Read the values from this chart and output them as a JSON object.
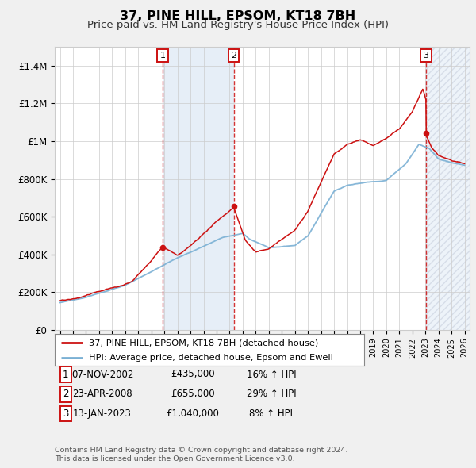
{
  "title": "37, PINE HILL, EPSOM, KT18 7BH",
  "subtitle": "Price paid vs. HM Land Registry's House Price Index (HPI)",
  "legend_line1": "37, PINE HILL, EPSOM, KT18 7BH (detached house)",
  "legend_line2": "HPI: Average price, detached house, Epsom and Ewell",
  "footnote1": "Contains HM Land Registry data © Crown copyright and database right 2024.",
  "footnote2": "This data is licensed under the Open Government Licence v3.0.",
  "transactions": [
    {
      "label": "1",
      "date": "07-NOV-2002",
      "price": "£435,000",
      "hpi_pct": "16% ↑ HPI",
      "year": 2002.87
    },
    {
      "label": "2",
      "date": "23-APR-2008",
      "price": "£655,000",
      "hpi_pct": "29% ↑ HPI",
      "year": 2008.31
    },
    {
      "label": "3",
      "date": "13-JAN-2023",
      "price": "£1,040,000",
      "hpi_pct": "8% ↑ HPI",
      "year": 2023.04
    }
  ],
  "trans_prices": [
    435000,
    655000,
    1040000
  ],
  "ylim": [
    0,
    1500000
  ],
  "yticks": [
    0,
    200000,
    400000,
    600000,
    800000,
    1000000,
    1200000,
    1400000
  ],
  "ytick_labels": [
    "£0",
    "£200K",
    "£400K",
    "£600K",
    "£800K",
    "£1M",
    "£1.2M",
    "£1.4M"
  ],
  "xmin": 1994.6,
  "xmax": 2026.4,
  "hpi_color": "#7ab0d4",
  "price_color": "#cc1111",
  "background_color": "#f0f0f0",
  "plot_bg_color": "#ffffff",
  "grid_color": "#cccccc",
  "shade_color": "#dce8f5",
  "hatch_color": "#c0c8d8"
}
